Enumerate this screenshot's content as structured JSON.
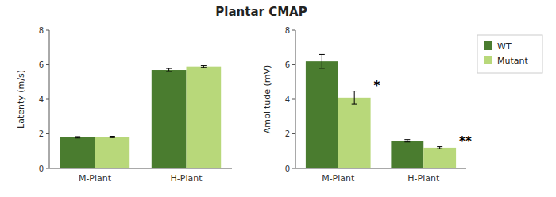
{
  "chart_data": [
    {
      "type": "bar",
      "title": "Plantar CMAP",
      "y_label": "Latenty (m/s)",
      "categories": [
        "M-Plant",
        "H-Plant"
      ],
      "series": [
        {
          "name": "WT",
          "color": "#4a7c2f",
          "values": [
            1.8,
            5.7
          ],
          "errors": [
            0.04,
            0.09
          ]
        },
        {
          "name": "Mutant",
          "color": "#b8d87a",
          "values": [
            1.82,
            5.9
          ],
          "errors": [
            0.04,
            0.05
          ]
        }
      ],
      "ylim": [
        0,
        8
      ],
      "yticks": [
        0,
        2,
        4,
        6,
        8
      ]
    },
    {
      "type": "bar",
      "y_label": "Amplitude (mV)",
      "categories": [
        "M-Plant",
        "H-Plant"
      ],
      "series": [
        {
          "name": "WT",
          "color": "#4a7c2f",
          "values": [
            6.2,
            1.6
          ],
          "errors": [
            0.4,
            0.07
          ]
        },
        {
          "name": "Mutant",
          "color": "#b8d87a",
          "values": [
            4.1,
            1.2
          ],
          "errors": [
            0.38,
            0.06
          ],
          "annotations": [
            "*",
            "**"
          ]
        }
      ],
      "ylim": [
        0,
        8
      ],
      "yticks": [
        0,
        2,
        4,
        6,
        8
      ],
      "legend": "right"
    }
  ]
}
